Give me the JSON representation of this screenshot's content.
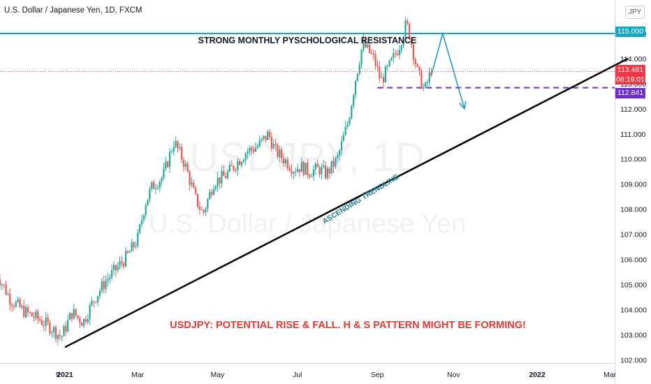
{
  "header": {
    "title": "U.S. Dollar / Japanese Yen, 1D, FXCM",
    "currency_button": "JPY"
  },
  "watermark": {
    "symbol": "USDJPY, 1D",
    "name": "U.S. Dollar / Japanese Yen"
  },
  "price_labels": {
    "resistance": "115.000",
    "last_price": "113.481",
    "countdown": "08:19:01",
    "neckline": "112.841"
  },
  "colors": {
    "up_candle": "#26a69a",
    "down_candle": "#ef5350",
    "resistance_line": "#12a9c2",
    "neckline": "#6c2fc7",
    "projection": "#1a9fb8",
    "trendline": "#000000",
    "headline_text": "#e53935"
  },
  "chart_data": {
    "type": "candlestick",
    "title": "U.S. Dollar / Japanese Yen, 1D, FXCM",
    "ylim": [
      101.8,
      115.6
    ],
    "y_ticks": [
      "102.000",
      "103.000",
      "104.000",
      "105.000",
      "106.000",
      "107.000",
      "108.000",
      "109.000",
      "110.000",
      "111.000",
      "112.000",
      "113.000",
      "114.000",
      "115.000"
    ],
    "y_tick_values": [
      102,
      103,
      104,
      105,
      106,
      107,
      108,
      109,
      110,
      111,
      112,
      113,
      114,
      115
    ],
    "x_ticks": [
      "9",
      "2021",
      "Mar",
      "May",
      "Jul",
      "Sep",
      "Nov",
      "2022",
      "Mar"
    ],
    "x_tick_days": [
      -2,
      0,
      20,
      42,
      64,
      86,
      107,
      130,
      150
    ],
    "price_path": [
      [
        -19,
        105.5
      ],
      [
        -15,
        104.4
      ],
      [
        -11,
        103.9
      ],
      [
        -7,
        103.6
      ],
      [
        -4,
        103.3
      ],
      [
        -1,
        102.9
      ],
      [
        2,
        103.9
      ],
      [
        5,
        103.5
      ],
      [
        8,
        104.4
      ],
      [
        11,
        105.1
      ],
      [
        14,
        105.6
      ],
      [
        17,
        106.1
      ],
      [
        20,
        106.8
      ],
      [
        22,
        108.2
      ],
      [
        24,
        108.9
      ],
      [
        27,
        109.3
      ],
      [
        30,
        110.7
      ],
      [
        33,
        109.8
      ],
      [
        36,
        108.4
      ],
      [
        38,
        107.8
      ],
      [
        41,
        109.1
      ],
      [
        44,
        109.3
      ],
      [
        47,
        109.8
      ],
      [
        50,
        110.3
      ],
      [
        53,
        110.5
      ],
      [
        56,
        111.0
      ],
      [
        58,
        110.3
      ],
      [
        61,
        109.9
      ],
      [
        63,
        109.6
      ],
      [
        65,
        109.7
      ],
      [
        67,
        109.5
      ],
      [
        70,
        109.6
      ],
      [
        72,
        109.4
      ],
      [
        75,
        110.0
      ],
      [
        78,
        111.5
      ],
      [
        80,
        113.2
      ],
      [
        82,
        114.6
      ],
      [
        85,
        114.0
      ],
      [
        87,
        113.1
      ],
      [
        89,
        113.6
      ],
      [
        92,
        114.5
      ],
      [
        94,
        115.4
      ],
      [
        95,
        114.9
      ],
      [
        97,
        113.5
      ],
      [
        99,
        112.7
      ],
      [
        101,
        113.6
      ]
    ],
    "levels": {
      "resistance": 115.0,
      "last_price": 113.481,
      "neckline": 112.841
    },
    "trendline": {
      "from": [
        0,
        102.5
      ],
      "to": [
        155,
        114.0
      ]
    },
    "projection": [
      [
        101,
        113.4
      ],
      [
        104,
        115.0
      ],
      [
        110,
        112.0
      ]
    ],
    "annotations": {
      "resistance_label": "STRONG MONTHLY PYSCHOLOGICAL RESISTANCE",
      "trendline_label": "ASCENDING TRENDLINE",
      "headline": "USDJPY: POTENTIAL RISE & FALL. H & S PATTERN MIGHT BE FORMING!"
    }
  }
}
